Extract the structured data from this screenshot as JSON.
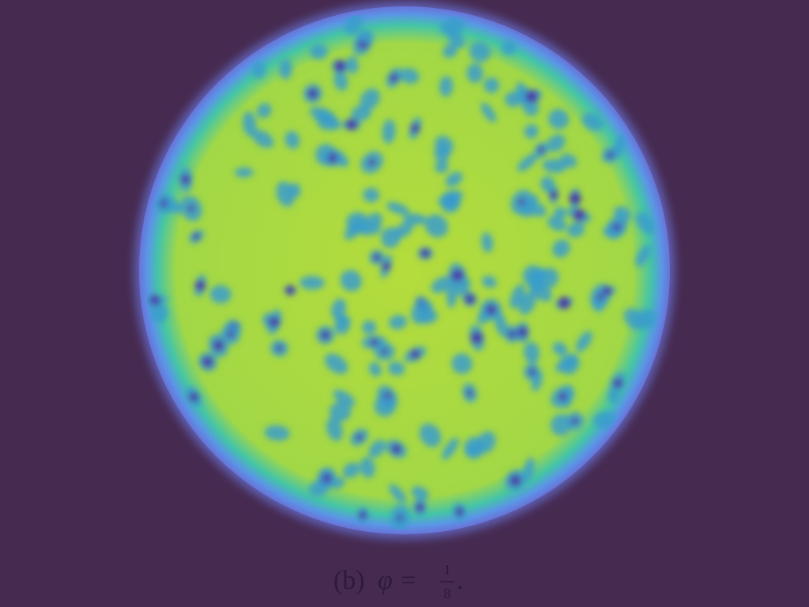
{
  "figure": {
    "caption": {
      "label": "(b)",
      "lhs": "φ =",
      "numerator": "1",
      "denominator": "8",
      "end": "."
    }
  }
}
